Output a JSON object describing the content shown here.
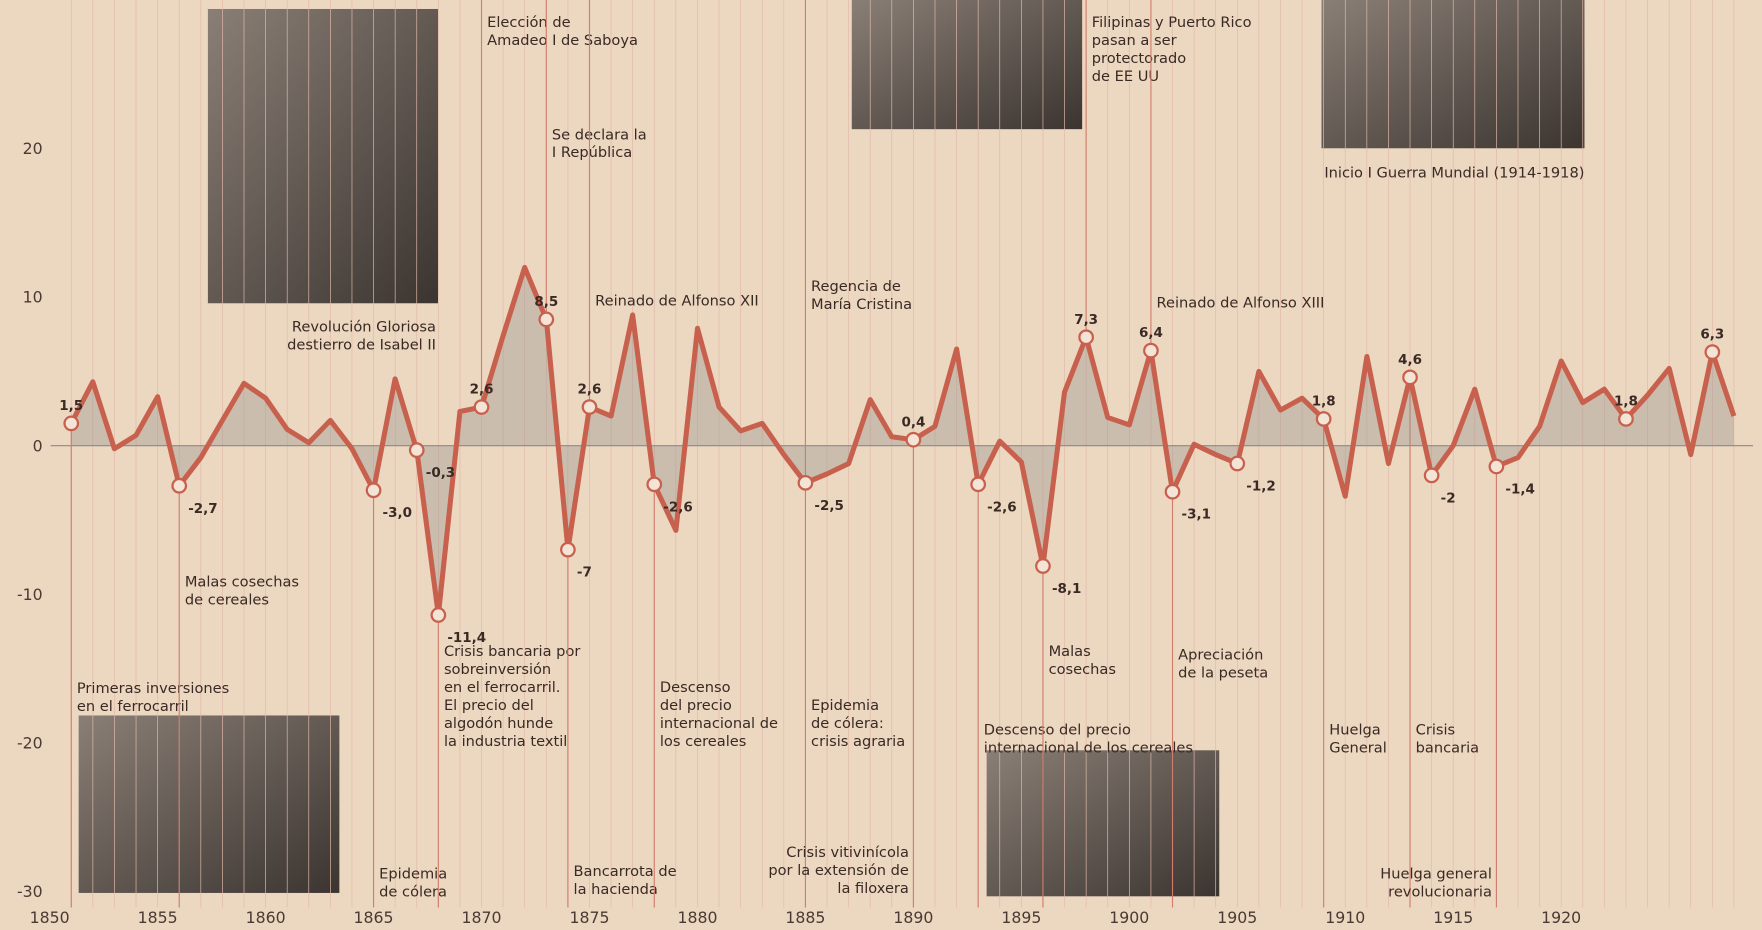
{
  "chart_data": {
    "type": "line",
    "x": [
      1851,
      1852,
      1853,
      1854,
      1855,
      1856,
      1857,
      1858,
      1859,
      1860,
      1861,
      1862,
      1863,
      1864,
      1865,
      1866,
      1867,
      1868,
      1869,
      1870,
      1871,
      1872,
      1873,
      1874,
      1875,
      1876,
      1877,
      1878,
      1879,
      1880,
      1881,
      1882,
      1883,
      1884,
      1885,
      1886,
      1887,
      1888,
      1889,
      1890,
      1891,
      1892,
      1893,
      1894,
      1895,
      1896,
      1897,
      1898,
      1899,
      1900,
      1901,
      1902,
      1903,
      1904,
      1905,
      1906,
      1907,
      1908,
      1909,
      1910,
      1911,
      1912,
      1913,
      1914,
      1915,
      1916,
      1917,
      1918,
      1919,
      1920,
      1921,
      1922,
      1923,
      1924,
      1925,
      1926,
      1927,
      1928
    ],
    "values": [
      1.5,
      4.3,
      -0.2,
      0.7,
      3.3,
      -2.7,
      -0.8,
      1.7,
      4.2,
      3.2,
      1.1,
      0.2,
      1.7,
      -0.2,
      -3.0,
      4.5,
      -0.3,
      -11.4,
      2.3,
      2.6,
      7.4,
      12,
      8.5,
      -7,
      2.6,
      2.0,
      8.8,
      -2.6,
      -5.7,
      7.9,
      2.6,
      1.0,
      1.5,
      -0.6,
      -2.5,
      -1.9,
      -1.2,
      3.1,
      0.6,
      0.4,
      1.3,
      6.5,
      -2.6,
      0.3,
      -1.1,
      -8.1,
      3.6,
      7.3,
      1.9,
      1.4,
      6.4,
      -3.1,
      0.1,
      -0.6,
      -1.2,
      5.0,
      2.4,
      3.2,
      1.8,
      -3.4,
      6.0,
      -1.2,
      4.6,
      -2,
      0.0,
      3.8,
      -1.4,
      -0.8,
      1.3,
      5.7,
      2.9,
      3.8,
      1.8,
      3.4,
      5.2,
      -0.6,
      6.3,
      2.0
    ],
    "value_labels": [
      "1,5",
      null,
      null,
      null,
      null,
      "-2,7",
      null,
      null,
      null,
      null,
      null,
      null,
      null,
      null,
      "-3,0",
      null,
      "-0,3",
      "-11,4",
      null,
      "2,6",
      null,
      null,
      "8,5",
      "-7",
      "2,6",
      null,
      null,
      "-2,6",
      null,
      null,
      null,
      null,
      null,
      null,
      "-2,5",
      null,
      null,
      null,
      null,
      "0,4",
      null,
      null,
      "-2,6",
      null,
      null,
      "-8,1",
      null,
      "7,3",
      null,
      null,
      "6,4",
      "-3,1",
      null,
      null,
      "-1,2",
      null,
      null,
      null,
      "1,8",
      null,
      null,
      null,
      "4,6",
      "-2",
      null,
      null,
      "-1,4",
      null,
      null,
      null,
      null,
      null,
      "1,8",
      null,
      null,
      null,
      "6,3",
      null
    ],
    "color": "#c8604e",
    "xlim": [
      1847.7,
      1929.3
    ],
    "xticks": [
      1850,
      1855,
      1860,
      1865,
      1870,
      1875,
      1880,
      1885,
      1890,
      1895,
      1900,
      1905,
      1910,
      1915,
      1920
    ],
    "ylim": [
      -32.6,
      30
    ],
    "yticks": [
      20,
      10,
      0,
      -10,
      -20,
      -30
    ],
    "annotations": [
      {
        "x": 1851,
        "lines": [
          "Primeras inversiones",
          "en el ferrocarril"
        ]
      },
      {
        "x": 1856,
        "lines": [
          "Malas cosechas",
          "de cereales"
        ]
      },
      {
        "x": 1865,
        "lines": [
          "Epidemia",
          "de cólera"
        ]
      },
      {
        "x": 1868,
        "lines": [
          "Revolución Gloriosa",
          "destierro de Isabel II"
        ]
      },
      {
        "x": 1868,
        "lines": [
          "Crisis bancaria por",
          "sobreinversión",
          "en el ferrocarril.",
          "El precio del",
          "algodón hunde",
          "la industria textil"
        ]
      },
      {
        "x": 1870,
        "lines": [
          "Elección de",
          "Amadeo I de Saboya"
        ]
      },
      {
        "x": 1873,
        "lines": [
          "Se declara la",
          "I República"
        ]
      },
      {
        "x": 1874,
        "lines": [
          "Bancarrota de",
          "la hacienda"
        ]
      },
      {
        "x": 1875,
        "lines": [
          "Reinado de Alfonso XII"
        ]
      },
      {
        "x": 1878,
        "lines": [
          "Descenso",
          "del precio",
          "internacional de",
          "los cereales"
        ]
      },
      {
        "x": 1885,
        "lines": [
          "Regencia de",
          "María Cristina"
        ]
      },
      {
        "x": 1885,
        "lines": [
          "Epidemia",
          "de cólera:",
          "crisis agraria"
        ]
      },
      {
        "x": 1890,
        "lines": [
          "Crisis vitivinícola",
          "por la extensión de",
          "la filoxera"
        ]
      },
      {
        "x": 1893,
        "lines": [
          "Descenso del precio",
          "internacional de los cereales"
        ]
      },
      {
        "x": 1896,
        "lines": [
          "Malas",
          "cosechas"
        ]
      },
      {
        "x": 1898,
        "lines": [
          "Filipinas y Puerto Rico",
          "pasan a ser",
          "protectorado",
          "de EE UU"
        ]
      },
      {
        "x": 1901,
        "lines": [
          "Reinado de Alfonso XIII"
        ]
      },
      {
        "x": 1902,
        "lines": [
          "Apreciación",
          "de la peseta"
        ]
      },
      {
        "x": 1909,
        "lines": [
          "Huelga",
          "General"
        ]
      },
      {
        "x": 1913,
        "lines": [
          "Crisis",
          "bancaria"
        ]
      },
      {
        "x": 1917,
        "lines": [
          "Huelga general",
          "revolucionaria"
        ]
      },
      {
        "x": 1914,
        "lines": [
          "Inicio I Guerra Mundial (1914-1918)"
        ]
      }
    ]
  }
}
